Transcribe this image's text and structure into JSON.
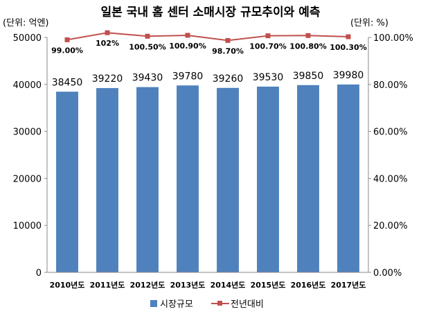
{
  "chart_data": {
    "type": "bar+line",
    "title": "일본 국내 홈 센터 소매시장 규모추이와 예측",
    "left_unit_label": "(단위: 억엔)",
    "right_unit_label": "(단위: %)",
    "categories": [
      "2010년도",
      "2011년도",
      "2012년도",
      "2013년도",
      "2014년도",
      "2015년도",
      "2016년도",
      "2017년도"
    ],
    "series": [
      {
        "name": "시장규모",
        "type": "bar",
        "axis": "left",
        "color": "#4f81bd",
        "values": [
          38450,
          39220,
          39430,
          39780,
          39260,
          39530,
          39850,
          39980
        ],
        "labels": [
          "38450",
          "39220",
          "39430",
          "39780",
          "39260",
          "39530",
          "39850",
          "39980"
        ]
      },
      {
        "name": "전년대비",
        "type": "line",
        "axis": "right",
        "color": "#c0504d",
        "values": [
          99.0,
          102.0,
          100.5,
          100.9,
          98.7,
          100.7,
          100.8,
          100.3
        ],
        "labels": [
          "99.00%",
          "102%",
          "100.50%",
          "100.90%",
          "98.70%",
          "100.70%",
          "100.80%",
          "100.30%"
        ]
      }
    ],
    "y_left": {
      "min": 0,
      "max": 50000,
      "ticks": [
        "0",
        "10000",
        "20000",
        "30000",
        "40000",
        "50000"
      ],
      "tick_values": [
        0,
        10000,
        20000,
        30000,
        40000,
        50000
      ]
    },
    "y_right": {
      "min": 0,
      "max": 100,
      "ticks": [
        "0.00%",
        "20.00%",
        "40.00%",
        "60.00%",
        "80.00%",
        "100.00%"
      ],
      "tick_values": [
        0,
        20,
        40,
        60,
        80,
        100
      ]
    },
    "grid": false,
    "legend_position": "bottom"
  }
}
